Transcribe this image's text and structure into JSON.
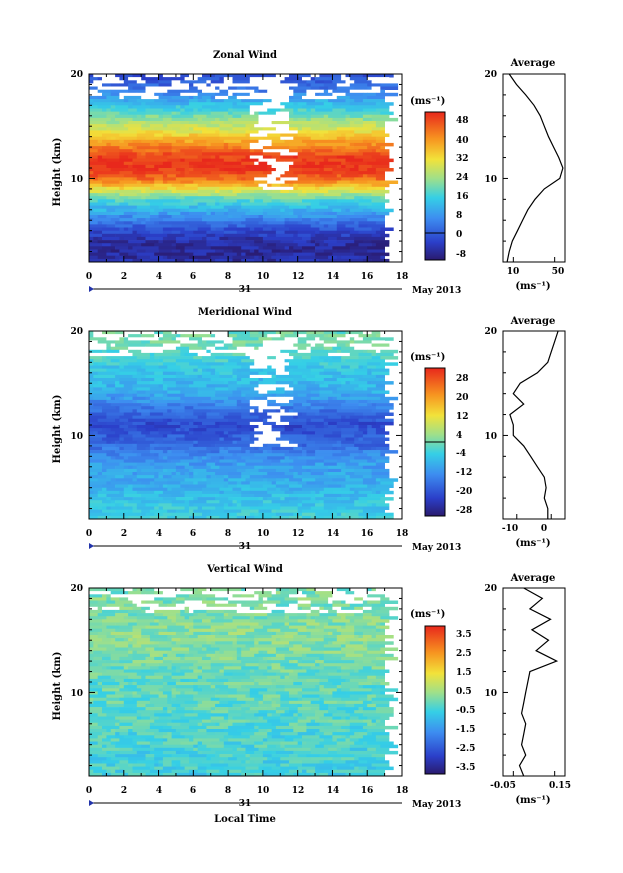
{
  "panels": [
    {
      "title": "Zonal Wind",
      "ylabel": "Height (km)",
      "y_ticks": [
        "10",
        "20"
      ],
      "x_ticks": [
        "0",
        "2",
        "4",
        "6",
        "8",
        "10",
        "12",
        "14",
        "16",
        "18"
      ],
      "date_day": "31",
      "date_month": "May 2013",
      "unit": "(ms⁻¹)",
      "cbar_labels": [
        "48",
        "40",
        "32",
        "24",
        "16",
        "8",
        "0",
        "-8"
      ],
      "avg_title": "Average",
      "avg_x_ticks": [
        "10",
        "50"
      ],
      "avg_unit": "(ms⁻¹)"
    },
    {
      "title": "Meridional Wind",
      "ylabel": "Height (km)",
      "y_ticks": [
        "10",
        "20"
      ],
      "x_ticks": [
        "0",
        "2",
        "4",
        "6",
        "8",
        "10",
        "12",
        "14",
        "16",
        "18"
      ],
      "date_day": "31",
      "date_month": "May 2013",
      "unit": "(ms⁻¹)",
      "cbar_labels": [
        "28",
        "20",
        "12",
        "4",
        "-4",
        "-12",
        "-20",
        "-28"
      ],
      "avg_title": "Average",
      "avg_x_ticks": [
        "-10",
        "0"
      ],
      "avg_unit": "(ms⁻¹)"
    },
    {
      "title": "Vertical Wind",
      "ylabel": "Height (km)",
      "y_ticks": [
        "10",
        "20"
      ],
      "x_ticks": [
        "0",
        "2",
        "4",
        "6",
        "8",
        "10",
        "12",
        "14",
        "16",
        "18"
      ],
      "date_day": "31",
      "date_month": "May 2013",
      "unit": "(ms⁻¹)",
      "cbar_labels": [
        "3.5",
        "2.5",
        "1.5",
        "0.5",
        "-0.5",
        "-1.5",
        "-2.5",
        "-3.5"
      ],
      "avg_title": "Average",
      "avg_x_ticks": [
        "-0.05",
        "0.15"
      ],
      "avg_unit": "(ms⁻¹)"
    }
  ],
  "xlabel": "Local Time",
  "chart_data": [
    {
      "type": "heatmap",
      "title": "Zonal Wind",
      "ylabel": "Height (km)",
      "xlim": [
        0,
        18
      ],
      "ylim": [
        2,
        20
      ],
      "data_xlim": [
        0,
        17
      ],
      "colorbar_range": [
        -8,
        48
      ],
      "colorbar_ticks": [
        -8,
        0,
        8,
        16,
        24,
        32,
        40,
        48
      ],
      "profile": {
        "height": [
          2,
          3,
          4,
          5,
          6,
          7,
          8,
          9,
          10,
          11,
          12,
          13,
          14,
          15,
          16,
          17,
          18,
          19,
          20
        ],
        "value": [
          -4,
          -5,
          -4,
          0,
          6,
          12,
          18,
          30,
          42,
          47,
          46,
          40,
          33,
          26,
          20,
          14,
          8,
          3,
          0
        ]
      },
      "avg_profile": {
        "xlim": [
          0,
          60
        ],
        "x_ticks": [
          10,
          50
        ],
        "height": [
          2,
          3,
          4,
          5,
          6,
          7,
          8,
          9,
          10,
          11,
          12,
          13,
          14,
          15,
          16,
          17,
          18,
          19,
          20
        ],
        "value": [
          4,
          6,
          9,
          14,
          19,
          24,
          31,
          40,
          55,
          58,
          54,
          49,
          44,
          40,
          36,
          30,
          22,
          13,
          6
        ]
      }
    },
    {
      "type": "heatmap",
      "title": "Meridional Wind",
      "ylabel": "Height (km)",
      "xlim": [
        0,
        18
      ],
      "ylim": [
        2,
        20
      ],
      "data_xlim": [
        0,
        17
      ],
      "colorbar_range": [
        -28,
        28
      ],
      "colorbar_ticks": [
        -28,
        -20,
        -12,
        -4,
        4,
        12,
        20,
        28
      ],
      "profile": {
        "height": [
          2,
          3,
          4,
          5,
          6,
          7,
          8,
          9,
          10,
          11,
          12,
          13,
          14,
          15,
          16,
          17,
          18,
          19,
          20
        ],
        "value": [
          -4,
          -5,
          -6,
          -8,
          -9,
          -10,
          -12,
          -16,
          -18,
          -20,
          -17,
          -13,
          -9,
          -7,
          -6,
          -4,
          -2,
          0,
          -1
        ]
      },
      "avg_profile": {
        "xlim": [
          -14,
          4
        ],
        "x_ticks": [
          -10,
          0
        ],
        "height": [
          2,
          3,
          4,
          5,
          6,
          7,
          8,
          9,
          10,
          11,
          12,
          13,
          14,
          15,
          16,
          17,
          18,
          19,
          20
        ],
        "value": [
          -1,
          -1,
          -2,
          -1.5,
          -2,
          -4,
          -6,
          -8,
          -11,
          -11,
          -12,
          -8,
          -11,
          -9,
          -4,
          -1,
          0,
          1,
          2
        ]
      }
    },
    {
      "type": "heatmap",
      "title": "Vertical Wind",
      "ylabel": "Height (km)",
      "xlim": [
        0,
        18
      ],
      "ylim": [
        2,
        20
      ],
      "data_xlim": [
        0,
        17
      ],
      "colorbar_range": [
        -4,
        4
      ],
      "colorbar_ticks": [
        -3.5,
        -2.5,
        -1.5,
        -0.5,
        0.5,
        1.5,
        2.5,
        3.5
      ],
      "profile": {
        "height": [
          2,
          3,
          4,
          5,
          6,
          7,
          8,
          9,
          10,
          11,
          12,
          13,
          14,
          15,
          16,
          17,
          18,
          19,
          20
        ],
        "value": [
          -0.6,
          -0.5,
          -0.5,
          -0.4,
          -0.4,
          -0.3,
          -0.3,
          -0.2,
          -0.2,
          -0.2,
          -0.1,
          0.0,
          0.1,
          0.2,
          0.2,
          0.1,
          0.0,
          0.1,
          0.0
        ]
      },
      "avg_profile": {
        "xlim": [
          -0.1,
          0.2
        ],
        "x_ticks": [
          -0.05,
          0.15
        ],
        "height": [
          2,
          3,
          4,
          5,
          6,
          7,
          8,
          9,
          10,
          11,
          12,
          13,
          14,
          15,
          16,
          17,
          18,
          19,
          20
        ],
        "value": [
          0.0,
          -0.02,
          0.01,
          -0.01,
          0.0,
          0.01,
          -0.01,
          0.0,
          0.01,
          0.02,
          0.03,
          0.16,
          0.06,
          0.12,
          0.04,
          0.13,
          0.03,
          0.09,
          0.0
        ]
      }
    }
  ]
}
